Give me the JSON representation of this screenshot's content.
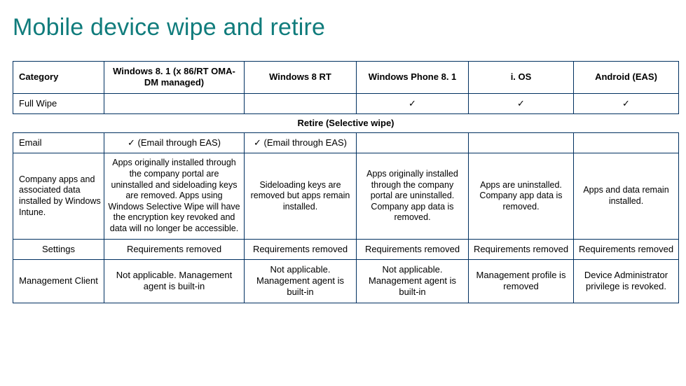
{
  "title": "Mobile device wipe and retire",
  "columns": [
    "Category",
    "Windows 8. 1 (x 86/RT OMA-DM managed)",
    "Windows 8 RT",
    "Windows Phone 8. 1",
    "i. OS",
    "Android (EAS)"
  ],
  "rows": {
    "fullwipe": {
      "label": "Full Wipe",
      "c1": "",
      "c2": "",
      "c3": "✓",
      "c4": "✓",
      "c5": "✓"
    },
    "section": "Retire (Selective wipe)",
    "email": {
      "label": "Email",
      "c1": "✓ (Email through EAS)",
      "c2": "✓ (Email through EAS)",
      "c3": "",
      "c4": "",
      "c5": ""
    },
    "apps": {
      "label": "Company apps and associated data installed by Windows Intune.",
      "c1": "Apps originally installed through the company portal are uninstalled and sideloading keys are removed. Apps using Windows Selective Wipe will have the encryption key revoked and data will no longer be accessible.",
      "c2": "Sideloading keys are removed but apps remain installed.",
      "c3": "Apps originally installed through the company portal are uninstalled. Company app data is removed.",
      "c4": "Apps are uninstalled. Company app data is removed.",
      "c5": "Apps and data remain installed."
    },
    "settings": {
      "label": "Settings",
      "c1": "Requirements removed",
      "c2": "Requirements removed",
      "c3": "Requirements removed",
      "c4": "Requirements removed",
      "c5": "Requirements removed"
    },
    "mgmt": {
      "label": "Management Client",
      "c1": "Not applicable. Management agent is built-in",
      "c2": "Not applicable. Management agent is built-in",
      "c3": "Not applicable. Management agent is built-in",
      "c4": "Management profile is removed",
      "c5": "Device Administrator privilege is revoked."
    }
  }
}
